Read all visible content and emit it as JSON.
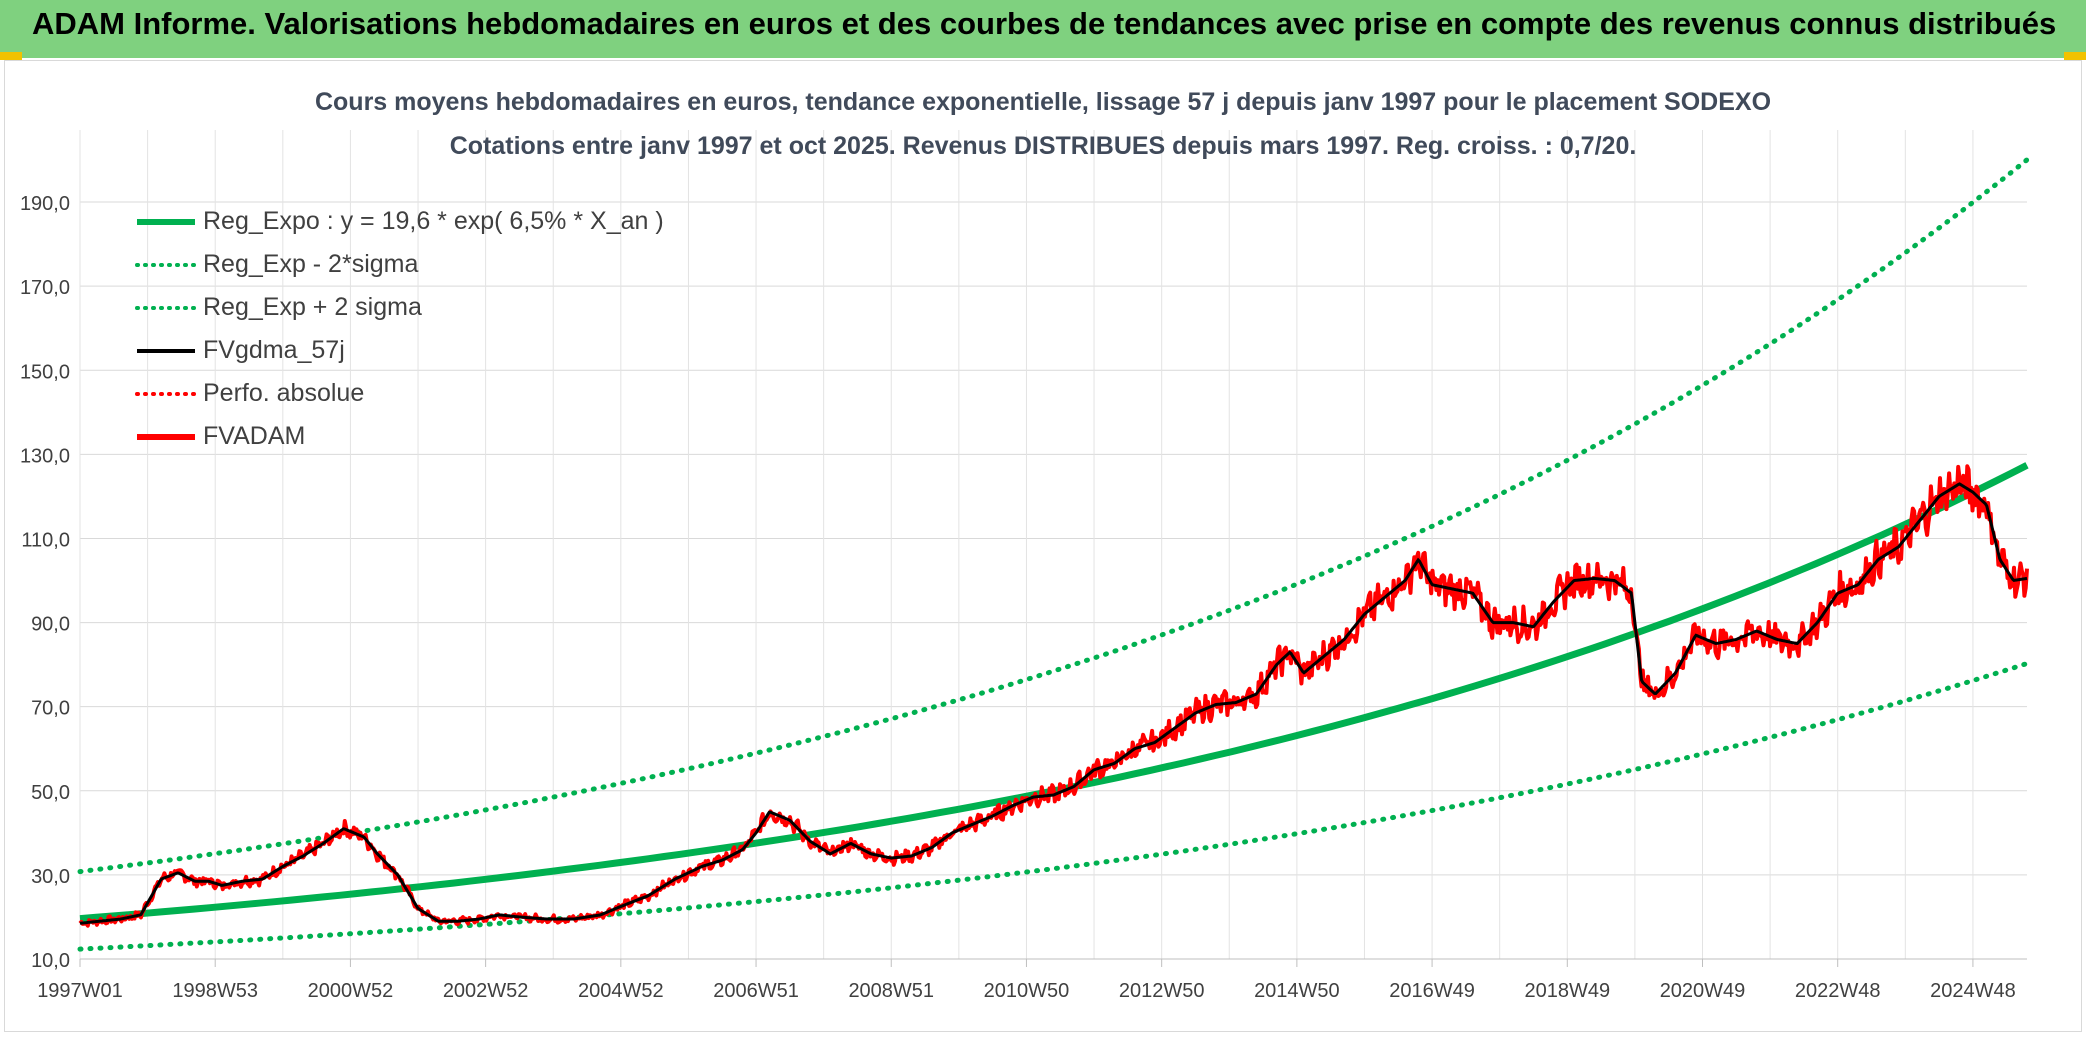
{
  "header": {
    "title": "ADAM Informe. Valorisations hebdomadaires en euros et des courbes de tendances avec prise en compte des revenus connus distribués"
  },
  "chart_data": {
    "type": "line",
    "title": "Cours moyens hebdomadaires en euros, tendance exponentielle, lissage 57 j depuis janv 1997 pour le placement SODEXO",
    "subtitle": "Cotations entre janv 1997 et oct 2025. Revenus DISTRIBUES depuis mars 1997. Reg. croiss. : 0,7/20.",
    "xlabel": "",
    "ylabel": "",
    "ylim": [
      10,
      200
    ],
    "yticks": [
      "10,0",
      "30,0",
      "50,0",
      "70,0",
      "90,0",
      "110,0",
      "130,0",
      "150,0",
      "170,0",
      "190,0"
    ],
    "xticks": [
      "1997W01",
      "1998W53",
      "2000W52",
      "2002W52",
      "2004W52",
      "2006W51",
      "2008W51",
      "2010W50",
      "2012W50",
      "2014W50",
      "2016W49",
      "2018W49",
      "2020W49",
      "2022W48",
      "2024W48"
    ],
    "xlim": [
      1997.0,
      2025.8
    ],
    "grid": true,
    "legend_position": "top-left",
    "regression": {
      "a": 19.6,
      "rate": 0.065,
      "x0": 1997.0,
      "x1": 2025.8,
      "sigma_factor_low": 0.63,
      "sigma_factor_high": 1.57
    },
    "series": [
      {
        "name": "Reg_Expo : y = 19,6 * exp( 6,5% *  X_an )",
        "color": "#00b050",
        "style": "solid-thick",
        "kind": "reg"
      },
      {
        "name": "Reg_Exp - 2*sigma",
        "color": "#00b050",
        "style": "dotted",
        "kind": "reg_low"
      },
      {
        "name": "Reg_Exp + 2 sigma",
        "color": "#00b050",
        "style": "dotted",
        "kind": "reg_high"
      },
      {
        "name": "FVgdma_57j",
        "color": "#000000",
        "style": "solid",
        "kind": "price_smooth"
      },
      {
        "name": "Perfo. absolue",
        "color": "#ff0000",
        "style": "dotted",
        "kind": "none"
      },
      {
        "name": "FVADAM",
        "color": "#ff0000",
        "style": "solid-thick",
        "kind": "price"
      }
    ],
    "price": {
      "x": [
        1997.0,
        1997.3,
        1997.6,
        1997.9,
        1998.2,
        1998.45,
        1998.7,
        1998.9,
        1999.1,
        1999.4,
        1999.7,
        2000.0,
        2000.3,
        2000.6,
        2000.9,
        2001.2,
        2001.4,
        2001.7,
        2002.0,
        2002.3,
        2002.6,
        2002.9,
        2003.2,
        2003.5,
        2003.9,
        2004.3,
        2004.7,
        2005.0,
        2005.4,
        2005.8,
        2006.2,
        2006.5,
        2006.8,
        2007.0,
        2007.2,
        2007.5,
        2007.8,
        2008.1,
        2008.4,
        2008.7,
        2009.0,
        2009.3,
        2009.6,
        2009.9,
        2010.2,
        2010.5,
        2010.8,
        2011.1,
        2011.4,
        2011.7,
        2012.0,
        2012.3,
        2012.6,
        2012.9,
        2013.2,
        2013.5,
        2013.8,
        2014.1,
        2014.4,
        2014.7,
        2014.9,
        2015.1,
        2015.4,
        2015.7,
        2016.0,
        2016.3,
        2016.6,
        2016.8,
        2017.0,
        2017.3,
        2017.6,
        2017.9,
        2018.2,
        2018.5,
        2018.8,
        2019.1,
        2019.4,
        2019.7,
        2019.95,
        2020.1,
        2020.3,
        2020.6,
        2020.9,
        2021.2,
        2021.5,
        2021.8,
        2022.1,
        2022.4,
        2022.7,
        2023.0,
        2023.3,
        2023.6,
        2023.9,
        2024.2,
        2024.5,
        2024.8,
        2025.0,
        2025.2,
        2025.4,
        2025.6,
        2025.8
      ],
      "values": [
        18.5,
        19.0,
        19.5,
        20.5,
        29.0,
        30.5,
        28.5,
        28.5,
        27.5,
        28.5,
        29.0,
        32.0,
        34.5,
        37.5,
        41.0,
        39.0,
        35.0,
        30.0,
        22.0,
        19.0,
        19.0,
        19.5,
        20.5,
        20.0,
        19.5,
        19.5,
        20.5,
        22.5,
        25.0,
        29.0,
        32.0,
        33.5,
        36.0,
        40.0,
        45.0,
        43.0,
        38.0,
        35.0,
        37.5,
        35.0,
        34.0,
        34.5,
        36.5,
        40.0,
        42.0,
        44.0,
        46.5,
        48.5,
        49.0,
        51.0,
        55.0,
        56.5,
        60.0,
        61.5,
        65.0,
        68.5,
        70.5,
        71.0,
        73.0,
        80.0,
        83.0,
        78.0,
        82.0,
        86.0,
        92.0,
        96.0,
        100.0,
        105.0,
        99.0,
        98.0,
        97.0,
        90.0,
        90.0,
        89.0,
        95.0,
        100.0,
        100.5,
        100.0,
        97.0,
        76.0,
        73.0,
        78.0,
        87.0,
        85.0,
        86.0,
        88.0,
        86.0,
        85.0,
        90.0,
        97.0,
        99.0,
        105.0,
        108.0,
        114.0,
        120.0,
        123.0,
        121.0,
        118.0,
        105.0,
        100.0,
        100.5
      ]
    }
  }
}
